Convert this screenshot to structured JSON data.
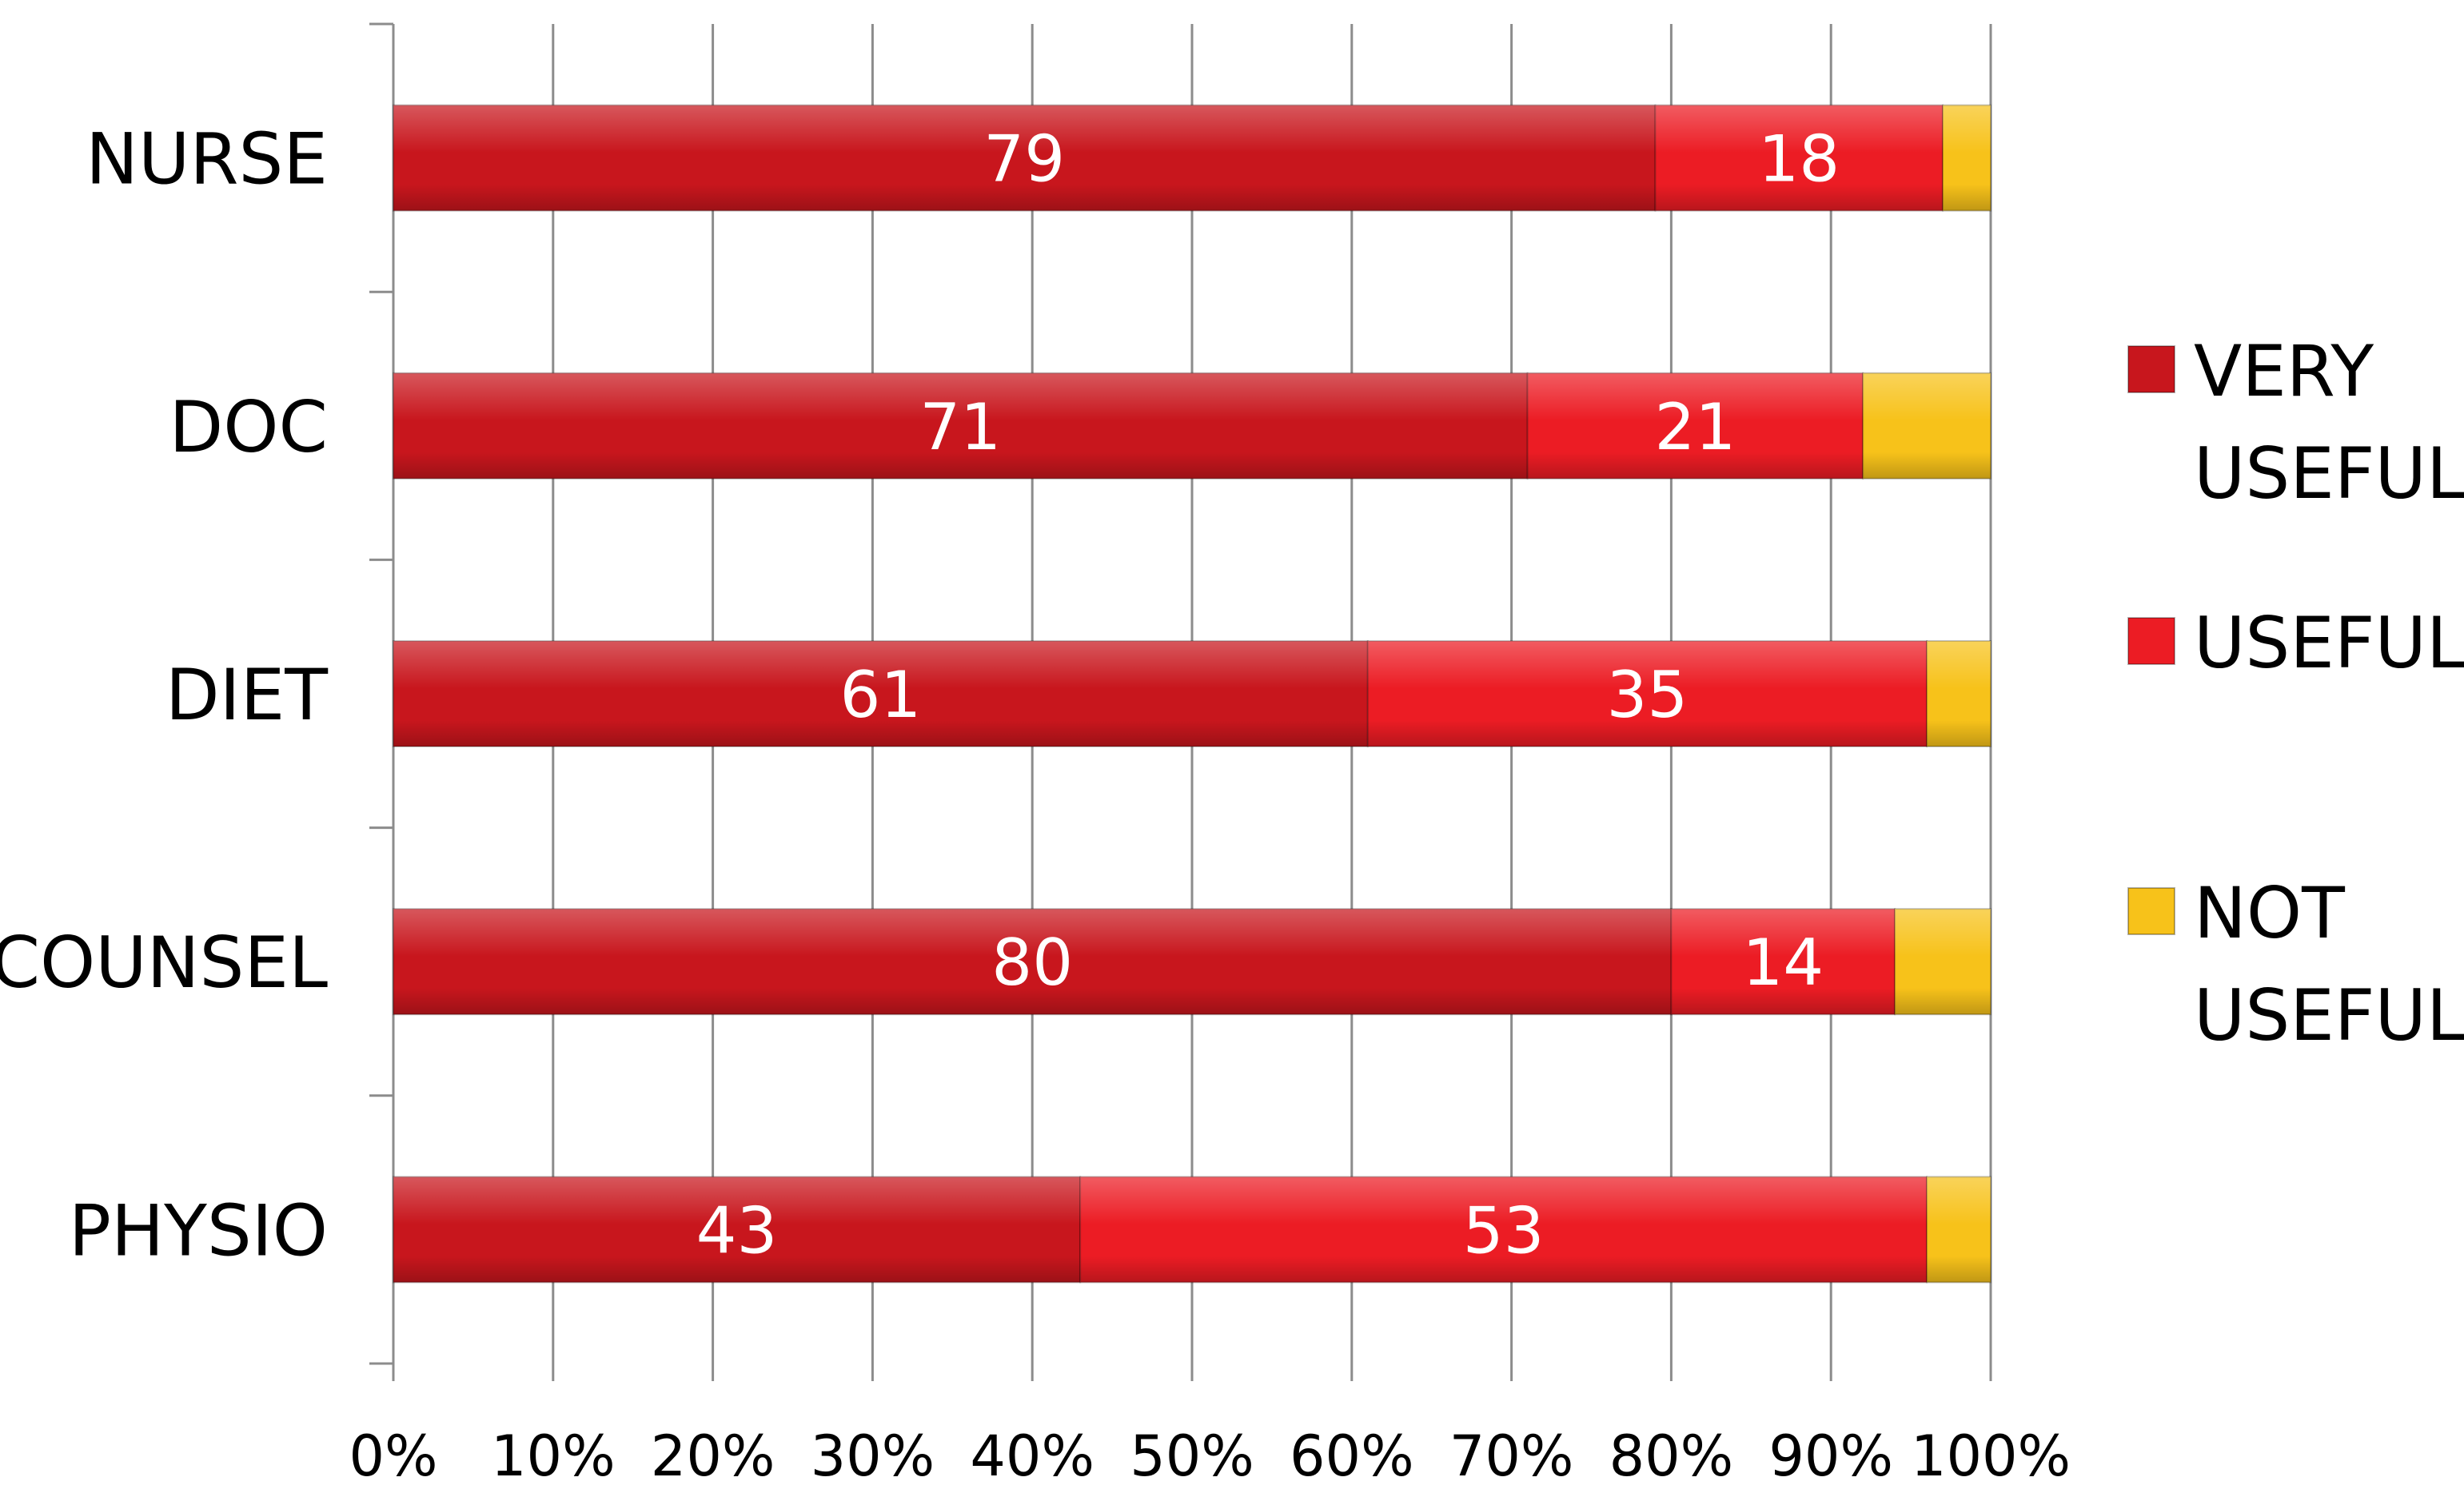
{
  "chart_data": {
    "type": "bar",
    "orientation": "horizontal",
    "stacked": "100%",
    "categories": [
      "NURSE",
      "DOC",
      "DIET",
      "COUNSEL",
      "PHYSIO"
    ],
    "series": [
      {
        "name": "VERY USEFUL",
        "legend_lines": [
          "VERY",
          "USEFUL"
        ],
        "color": "#c8161d",
        "values": [
          79,
          71,
          61,
          80,
          43
        ]
      },
      {
        "name": "USEFUL",
        "legend_lines": [
          "USEFUL"
        ],
        "color": "#ec1c24",
        "values": [
          18,
          21,
          35,
          14,
          53
        ]
      },
      {
        "name": "NOT USEFUL",
        "legend_lines": [
          "NOT",
          "USEFUL"
        ],
        "color": "#f7c21a",
        "values": [
          3,
          8,
          4,
          6,
          4
        ]
      }
    ],
    "data_labels": {
      "series": [
        "VERY USEFUL",
        "USEFUL"
      ]
    },
    "x_ticks": [
      "0%",
      "10%",
      "20%",
      "30%",
      "40%",
      "50%",
      "60%",
      "70%",
      "80%",
      "90%",
      "100%"
    ],
    "xlim": [
      0,
      100
    ],
    "grid": true,
    "legend_position": "right",
    "title": "",
    "xlabel": "",
    "ylabel": ""
  }
}
